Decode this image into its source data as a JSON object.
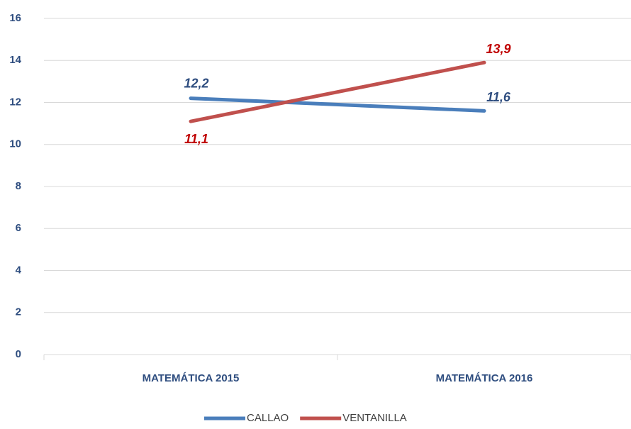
{
  "chart_data": {
    "type": "line",
    "categories": [
      "MATEMÁTICA 2015",
      "MATEMÁTICA 2016"
    ],
    "series": [
      {
        "name": "CALLAO",
        "color": "#4a7ebb",
        "label_color": "#2e4d7f",
        "values": [
          12.2,
          11.6
        ],
        "value_labels": [
          "12,2",
          "11,6"
        ]
      },
      {
        "name": "VENTANILLA",
        "color": "#c0504d",
        "label_color": "#c00000",
        "values": [
          11.1,
          13.9
        ],
        "value_labels": [
          "11,1",
          "13,9"
        ]
      }
    ],
    "ylim": [
      0,
      16
    ],
    "yticks": [
      0,
      2,
      4,
      6,
      8,
      10,
      12,
      14,
      16
    ],
    "grid": true,
    "legend": "bottom"
  }
}
